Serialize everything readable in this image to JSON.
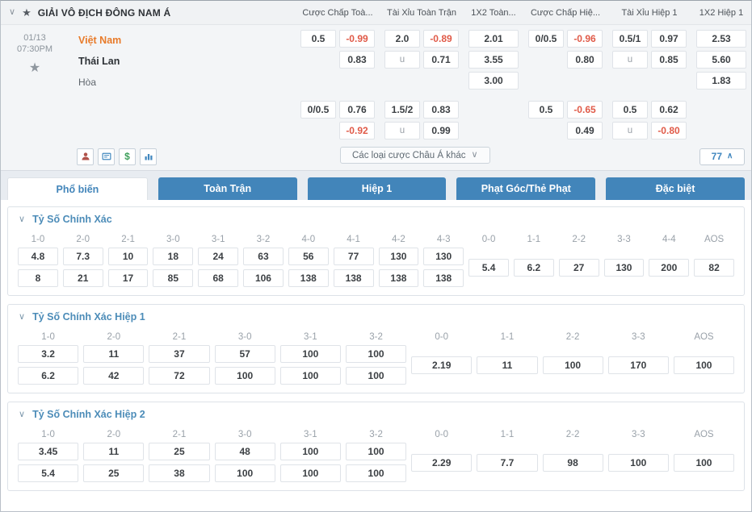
{
  "colors": {
    "tab_blue": "#4285ba",
    "odds_red": "#e05a48",
    "home_team_orange": "#e87b2a",
    "section_title_blue": "#4c8cb8",
    "markets_count_blue": "#4187bf"
  },
  "league_header": {
    "title": "GIẢI VÔ ĐỊCH ĐÔNG NAM Á",
    "market_columns": [
      "Cược Chấp Toà...",
      "Tài Xỉu Toàn Trận",
      "1X2 Toàn...",
      "Cược Chấp Hiệ...",
      "Tài Xỉu Hiệp 1",
      "1X2 Hiệp 1"
    ]
  },
  "match": {
    "date": "01/13",
    "time": "07:30PM",
    "home": "Việt Nam",
    "away": "Thái Lan",
    "draw": "Hòa",
    "asian_markets_label": "Các loại cược Châu Á khác",
    "markets_count": "77"
  },
  "odds_grid": {
    "blocks": [
      {
        "rows": [
          [
            {
              "v": "0.5"
            },
            {
              "v": "-0.99",
              "red": true
            },
            {
              "v": "2.0"
            },
            {
              "v": "-0.89",
              "red": true
            },
            {
              "v": "2.01"
            },
            {
              "v": "0/0.5"
            },
            {
              "v": "-0.96",
              "red": true
            },
            {
              "v": "0.5/1"
            },
            {
              "v": "0.97"
            },
            {
              "v": "2.53"
            }
          ],
          [
            null,
            {
              "v": "0.83"
            },
            {
              "v": "u",
              "muted": true
            },
            {
              "v": "0.71"
            },
            {
              "v": "3.55"
            },
            null,
            {
              "v": "0.80"
            },
            {
              "v": "u",
              "muted": true
            },
            {
              "v": "0.85"
            },
            {
              "v": "5.60"
            }
          ],
          [
            null,
            null,
            null,
            null,
            {
              "v": "3.00"
            },
            null,
            null,
            null,
            null,
            {
              "v": "1.83"
            }
          ]
        ]
      },
      {
        "rows": [
          [
            {
              "v": "0/0.5"
            },
            {
              "v": "0.76"
            },
            {
              "v": "1.5/2"
            },
            {
              "v": "0.83"
            },
            null,
            {
              "v": "0.5"
            },
            {
              "v": "-0.65",
              "red": true
            },
            {
              "v": "0.5"
            },
            {
              "v": "0.62"
            },
            null
          ],
          [
            null,
            {
              "v": "-0.92",
              "red": true
            },
            {
              "v": "u",
              "muted": true
            },
            {
              "v": "0.99"
            },
            null,
            null,
            {
              "v": "0.49"
            },
            {
              "v": "u",
              "muted": true
            },
            {
              "v": "-0.80",
              "red": true
            },
            null
          ]
        ]
      }
    ]
  },
  "tabs": [
    {
      "key": "pho-bien",
      "label": "Phổ biến",
      "active": true
    },
    {
      "key": "toan-tran",
      "label": "Toàn Trận",
      "active": false
    },
    {
      "key": "hiep-1",
      "label": "Hiệp 1",
      "active": false
    },
    {
      "key": "phat-goc-the-phat",
      "label": "Phạt Góc/Thẻ Phạt",
      "active": false
    },
    {
      "key": "dac-biet",
      "label": "Đặc biệt",
      "active": false
    }
  ],
  "score_sections": [
    {
      "title": "Tỷ Số Chính Xác",
      "pair_headers": [
        "1-0",
        "2-0",
        "2-1",
        "3-0",
        "3-1",
        "3-2",
        "4-0",
        "4-1",
        "4-2",
        "4-3"
      ],
      "row1": [
        "4.8",
        "7.3",
        "10",
        "18",
        "24",
        "63",
        "56",
        "77",
        "130",
        "130"
      ],
      "row2": [
        "8",
        "21",
        "17",
        "85",
        "68",
        "106",
        "138",
        "138",
        "138",
        "138"
      ],
      "single_headers": [
        "0-0",
        "1-1",
        "2-2",
        "3-3",
        "4-4",
        "AOS"
      ],
      "singles": [
        "5.4",
        "6.2",
        "27",
        "130",
        "200",
        "82"
      ]
    },
    {
      "title": "Tỷ Số Chính Xác Hiệp 1",
      "pair_headers": [
        "1-0",
        "2-0",
        "2-1",
        "3-0",
        "3-1",
        "3-2"
      ],
      "row1": [
        "3.2",
        "11",
        "37",
        "57",
        "100",
        "100"
      ],
      "row2": [
        "6.2",
        "42",
        "72",
        "100",
        "100",
        "100"
      ],
      "single_headers": [
        "0-0",
        "1-1",
        "2-2",
        "3-3",
        "AOS"
      ],
      "singles": [
        "2.19",
        "11",
        "100",
        "170",
        "100"
      ]
    },
    {
      "title": "Tỷ Số Chính Xác Hiệp 2",
      "pair_headers": [
        "1-0",
        "2-0",
        "2-1",
        "3-0",
        "3-1",
        "3-2"
      ],
      "row1": [
        "3.45",
        "11",
        "25",
        "48",
        "100",
        "100"
      ],
      "row2": [
        "5.4",
        "25",
        "38",
        "100",
        "100",
        "100"
      ],
      "single_headers": [
        "0-0",
        "1-1",
        "2-2",
        "3-3",
        "AOS"
      ],
      "singles": [
        "2.29",
        "7.7",
        "98",
        "100",
        "100"
      ]
    }
  ]
}
